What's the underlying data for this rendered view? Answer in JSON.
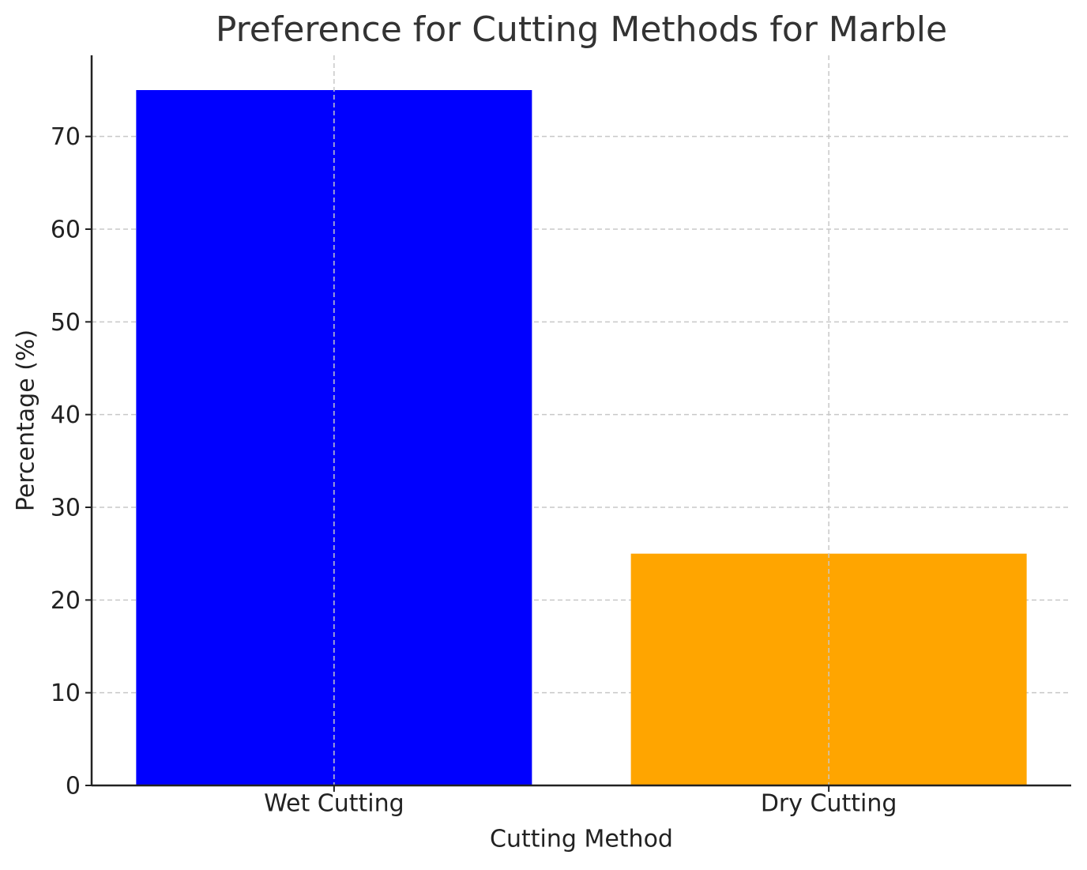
{
  "chart_data": {
    "type": "bar",
    "title": "Preference for Cutting Methods for Marble",
    "x_label": "Cutting Method",
    "y_label": "Percentage (%)",
    "categories": [
      "Wet Cutting",
      "Dry Cutting"
    ],
    "values": [
      75,
      25
    ],
    "colors": [
      "#0000ff",
      "#ffa500"
    ],
    "ylim": [
      0,
      78.75
    ],
    "yticks": [
      0,
      10,
      20,
      30,
      40,
      50,
      60,
      70
    ],
    "grid": true
  }
}
